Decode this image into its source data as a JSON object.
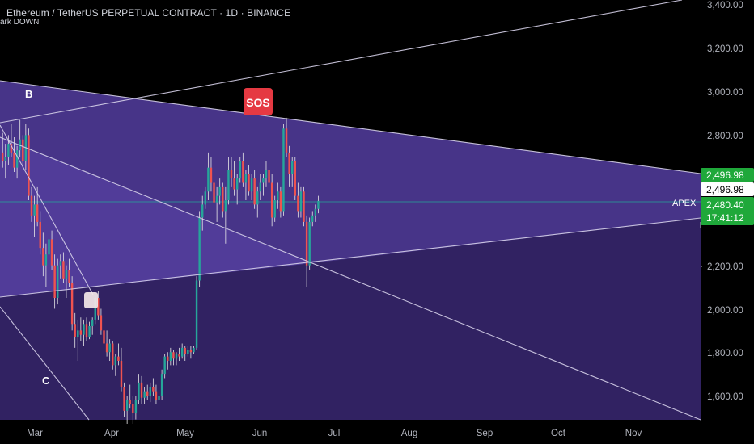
{
  "header": {
    "title": "Ethereum / TetherUS PERPETUAL CONTRACT · 1D · BINANCE",
    "subtitle": "ark DOWN"
  },
  "annotations": {
    "wave_b": "B",
    "wave_c": "C",
    "sos_badge": "SOS",
    "apex": "APEX"
  },
  "colors": {
    "background": "#000000",
    "up_candle": "#26a69a",
    "down_candle": "#ef5350",
    "up_bright": "#22ab94",
    "price_tag_green": "#1fa83a",
    "sos_red": "#e53942",
    "channel_fill": "#3c2a78",
    "wedge_fill": "#5a43a8",
    "line_white": "#d7d2ea",
    "price_line": "#26a69a"
  },
  "price_axis": {
    "labels": [
      "3,400.00",
      "3,200.00",
      "3,000.00",
      "2,800.00",
      "2,200.00",
      "2,000.00",
      "1,800.00",
      "1,600.00"
    ],
    "tags": {
      "upper_line": "2,496.98",
      "symbol_price": "2,496.98",
      "last_price": "2,480.40",
      "countdown": "17:41:12"
    }
  },
  "time_axis": {
    "labels": [
      "Mar",
      "Apr",
      "May",
      "Jun",
      "Jul",
      "Aug",
      "Sep",
      "Oct",
      "Nov"
    ]
  },
  "chart_data": {
    "type": "candlestick",
    "title": "Ethereum / TetherUS PERPETUAL CONTRACT · 1D · BINANCE",
    "y_range": [
      1480,
      3420
    ],
    "x_categories": [
      "Mar",
      "Apr",
      "May",
      "Jun",
      "Jul",
      "Aug",
      "Sep",
      "Oct",
      "Nov"
    ],
    "last_price": 2480.4,
    "candles_ohlc": [
      [
        2720,
        2810,
        2650,
        2680
      ],
      [
        2680,
        2760,
        2600,
        2700
      ],
      [
        2700,
        2800,
        2660,
        2760
      ],
      [
        2760,
        2850,
        2700,
        2720
      ],
      [
        2720,
        2790,
        2630,
        2650
      ],
      [
        2650,
        2750,
        2600,
        2730
      ],
      [
        2730,
        2870,
        2700,
        2780
      ],
      [
        2780,
        2800,
        2650,
        2680
      ],
      [
        2680,
        2850,
        2640,
        2800
      ],
      [
        2800,
        2830,
        2500,
        2520
      ],
      [
        2520,
        2560,
        2400,
        2430
      ],
      [
        2430,
        2520,
        2330,
        2480
      ],
      [
        2480,
        2560,
        2380,
        2400
      ],
      [
        2400,
        2450,
        2250,
        2280
      ],
      [
        2280,
        2350,
        2150,
        2200
      ],
      [
        2200,
        2300,
        2100,
        2250
      ],
      [
        2250,
        2350,
        2200,
        2320
      ],
      [
        2320,
        2360,
        2180,
        2200
      ],
      [
        2200,
        2250,
        2000,
        2050
      ],
      [
        2050,
        2230,
        2020,
        2200
      ],
      [
        2200,
        2250,
        2140,
        2220
      ],
      [
        2220,
        2260,
        2120,
        2140
      ],
      [
        2140,
        2200,
        2050,
        2180
      ],
      [
        2180,
        2230,
        2100,
        2120
      ],
      [
        2120,
        2150,
        1900,
        1930
      ],
      [
        1930,
        1980,
        1820,
        1870
      ],
      [
        1870,
        1950,
        1760,
        1900
      ],
      [
        1900,
        1960,
        1850,
        1880
      ],
      [
        1880,
        1950,
        1830,
        1930
      ],
      [
        1930,
        1960,
        1850,
        1870
      ],
      [
        1870,
        1940,
        1860,
        1920
      ],
      [
        1920,
        1960,
        1880,
        1950
      ],
      [
        1950,
        2060,
        1930,
        2050
      ],
      [
        2050,
        2080,
        1950,
        1970
      ],
      [
        1970,
        2000,
        1880,
        1900
      ],
      [
        1900,
        1950,
        1820,
        1840
      ],
      [
        1840,
        1900,
        1780,
        1800
      ],
      [
        1800,
        1860,
        1760,
        1840
      ],
      [
        1840,
        1850,
        1720,
        1740
      ],
      [
        1740,
        1790,
        1690,
        1780
      ],
      [
        1780,
        1840,
        1740,
        1760
      ],
      [
        1760,
        1820,
        1620,
        1640
      ],
      [
        1640,
        1660,
        1500,
        1530
      ],
      [
        1530,
        1600,
        1470,
        1580
      ],
      [
        1580,
        1650,
        1540,
        1560
      ],
      [
        1560,
        1600,
        1470,
        1520
      ],
      [
        1520,
        1600,
        1490,
        1580
      ],
      [
        1580,
        1700,
        1560,
        1660
      ],
      [
        1660,
        1690,
        1560,
        1590
      ],
      [
        1590,
        1640,
        1560,
        1620
      ],
      [
        1620,
        1650,
        1580,
        1600
      ],
      [
        1600,
        1660,
        1570,
        1640
      ],
      [
        1640,
        1680,
        1600,
        1620
      ],
      [
        1620,
        1650,
        1560,
        1580
      ],
      [
        1580,
        1620,
        1540,
        1600
      ],
      [
        1600,
        1720,
        1580,
        1700
      ],
      [
        1700,
        1790,
        1680,
        1780
      ],
      [
        1780,
        1800,
        1720,
        1760
      ],
      [
        1760,
        1820,
        1740,
        1800
      ],
      [
        1800,
        1810,
        1740,
        1770
      ],
      [
        1770,
        1800,
        1740,
        1790
      ],
      [
        1790,
        1820,
        1760,
        1780
      ],
      [
        1780,
        1840,
        1770,
        1820
      ],
      [
        1820,
        1830,
        1760,
        1790
      ],
      [
        1790,
        1830,
        1780,
        1810
      ],
      [
        1810,
        1830,
        1770,
        1800
      ],
      [
        1800,
        1830,
        1790,
        1820
      ],
      [
        1820,
        2150,
        1810,
        2130
      ],
      [
        2130,
        2450,
        2100,
        2420
      ],
      [
        2420,
        2520,
        2360,
        2480
      ],
      [
        2480,
        2560,
        2460,
        2540
      ],
      [
        2540,
        2720,
        2500,
        2650
      ],
      [
        2650,
        2700,
        2540,
        2580
      ],
      [
        2580,
        2620,
        2450,
        2490
      ],
      [
        2490,
        2560,
        2400,
        2520
      ],
      [
        2520,
        2600,
        2480,
        2560
      ],
      [
        2560,
        2580,
        2420,
        2450
      ],
      [
        2450,
        2560,
        2300,
        2500
      ],
      [
        2500,
        2700,
        2480,
        2640
      ],
      [
        2640,
        2700,
        2560,
        2600
      ],
      [
        2600,
        2680,
        2520,
        2550
      ],
      [
        2550,
        2620,
        2480,
        2600
      ],
      [
        2600,
        2700,
        2580,
        2680
      ],
      [
        2680,
        2720,
        2560,
        2580
      ],
      [
        2580,
        2640,
        2500,
        2620
      ],
      [
        2620,
        2660,
        2520,
        2540
      ],
      [
        2540,
        2620,
        2500,
        2600
      ],
      [
        2600,
        2640,
        2460,
        2480
      ],
      [
        2480,
        2560,
        2420,
        2540
      ],
      [
        2540,
        2620,
        2500,
        2580
      ],
      [
        2580,
        2620,
        2520,
        2600
      ],
      [
        2600,
        2680,
        2560,
        2640
      ],
      [
        2640,
        2660,
        2560,
        2580
      ],
      [
        2580,
        2620,
        2380,
        2420
      ],
      [
        2420,
        2520,
        2400,
        2500
      ],
      [
        2500,
        2580,
        2460,
        2540
      ],
      [
        2540,
        2560,
        2420,
        2450
      ],
      [
        2450,
        2850,
        2430,
        2830
      ],
      [
        2830,
        2880,
        2700,
        2720
      ],
      [
        2720,
        2750,
        2560,
        2620
      ],
      [
        2620,
        2700,
        2560,
        2680
      ],
      [
        2680,
        2700,
        2500,
        2520
      ],
      [
        2520,
        2580,
        2420,
        2450
      ],
      [
        2450,
        2560,
        2420,
        2540
      ],
      [
        2540,
        2560,
        2380,
        2400
      ],
      [
        2400,
        2430,
        2100,
        2200
      ],
      [
        2200,
        2420,
        2180,
        2400
      ],
      [
        2400,
        2450,
        2380,
        2430
      ],
      [
        2430,
        2480,
        2400,
        2460
      ],
      [
        2460,
        2520,
        2440,
        2496.98
      ]
    ]
  }
}
